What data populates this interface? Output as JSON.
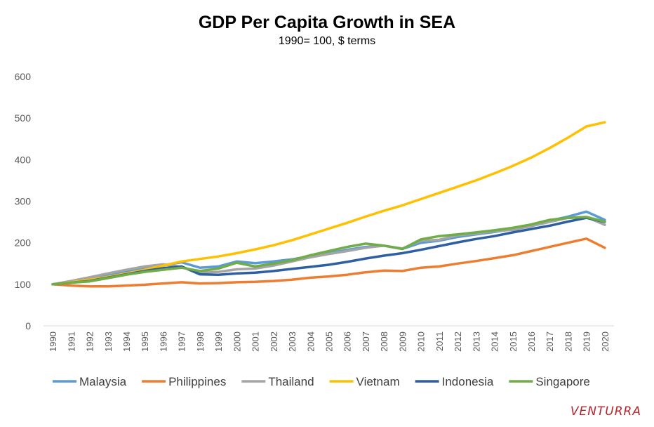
{
  "chart_data": {
    "type": "line",
    "title": "GDP Per Capita Growth in SEA",
    "subtitle": "1990= 100, $ terms",
    "xlabel": "",
    "ylabel": "",
    "ylim": [
      0,
      600
    ],
    "yticks": [
      "0",
      "100",
      "200",
      "300",
      "400",
      "500",
      "600"
    ],
    "x": [
      "1990",
      "1991",
      "1992",
      "1993",
      "1994",
      "1995",
      "1996",
      "1997",
      "1998",
      "1999",
      "2000",
      "2001",
      "2002",
      "2003",
      "2004",
      "2005",
      "2006",
      "2007",
      "2008",
      "2009",
      "2010",
      "2011",
      "2012",
      "2013",
      "2014",
      "2015",
      "2016",
      "2017",
      "2018",
      "2019",
      "2020"
    ],
    "grid": false,
    "legend_position": "bottom",
    "series": [
      {
        "name": "Malaysia",
        "color": "#5b9bd5",
        "values": [
          100,
          107,
          115,
          122,
          131,
          138,
          146,
          153,
          140,
          143,
          155,
          151,
          155,
          160,
          168,
          175,
          183,
          190,
          193,
          185,
          200,
          205,
          214,
          220,
          226,
          233,
          242,
          253,
          263,
          275,
          255
        ]
      },
      {
        "name": "Philippines",
        "color": "#ed7d31",
        "values": [
          100,
          97,
          95,
          95,
          97,
          99,
          102,
          105,
          102,
          103,
          105,
          106,
          108,
          111,
          116,
          119,
          123,
          129,
          133,
          132,
          140,
          143,
          150,
          156,
          163,
          170,
          180,
          190,
          200,
          210,
          188
        ]
      },
      {
        "name": "Thailand",
        "color": "#a5a5a5",
        "values": [
          100,
          108,
          117,
          126,
          135,
          143,
          148,
          142,
          128,
          130,
          136,
          138,
          145,
          155,
          165,
          173,
          180,
          188,
          193,
          186,
          205,
          207,
          218,
          222,
          228,
          231,
          240,
          250,
          260,
          262,
          243
        ]
      },
      {
        "name": "Vietnam",
        "color": "#ffc000",
        "values": [
          100,
          105,
          111,
          118,
          126,
          135,
          145,
          155,
          161,
          167,
          175,
          184,
          194,
          206,
          220,
          234,
          248,
          263,
          277,
          290,
          305,
          320,
          335,
          350,
          367,
          385,
          405,
          428,
          453,
          480,
          490
        ]
      },
      {
        "name": "Indonesia",
        "color": "#2e5fa3",
        "values": [
          100,
          104,
          108,
          116,
          124,
          132,
          139,
          143,
          124,
          123,
          126,
          128,
          132,
          137,
          142,
          147,
          154,
          162,
          169,
          175,
          183,
          192,
          201,
          209,
          216,
          225,
          233,
          241,
          251,
          260,
          250
        ]
      },
      {
        "name": "Singapore",
        "color": "#70ad47",
        "values": [
          100,
          104,
          107,
          115,
          123,
          130,
          135,
          140,
          132,
          138,
          152,
          143,
          150,
          158,
          170,
          180,
          190,
          198,
          193,
          185,
          208,
          216,
          220,
          225,
          230,
          236,
          244,
          255,
          260,
          262,
          251
        ]
      }
    ]
  },
  "brand": "VENTURRA"
}
